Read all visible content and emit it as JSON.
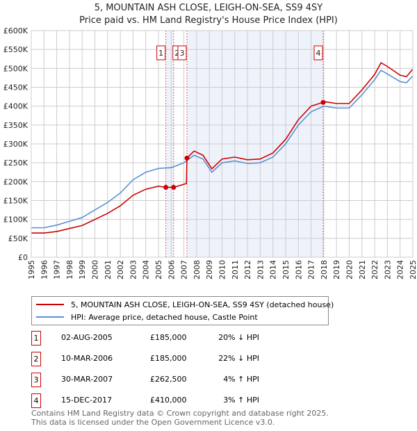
{
  "title": "5, MOUNTAIN ASH CLOSE, LEIGH-ON-SEA, SS9 4SY",
  "subtitle": "Price paid vs. HM Land Registry's House Price Index (HPI)",
  "legend": {
    "property": "5, MOUNTAIN ASH CLOSE, LEIGH-ON-SEA, SS9 4SY (detached house)",
    "hpi": "HPI: Average price, detached house, Castle Point"
  },
  "colors": {
    "property": "#cc0000",
    "hpi": "#5b8fd4",
    "shade": "#eef2fb"
  },
  "sales": [
    {
      "n": "1",
      "date": "02-AUG-2005",
      "price": "£185,000",
      "hpi": "20% ↓ HPI",
      "x": 2005.58,
      "y": 185000
    },
    {
      "n": "2",
      "date": "10-MAR-2006",
      "price": "£185,000",
      "hpi": "22% ↓ HPI",
      "x": 2006.19,
      "y": 185000
    },
    {
      "n": "3",
      "date": "30-MAR-2007",
      "price": "£262,500",
      "hpi": "4% ↑ HPI",
      "x": 2007.24,
      "y": 262500
    },
    {
      "n": "4",
      "date": "15-DEC-2017",
      "price": "£410,000",
      "hpi": "3% ↑ HPI",
      "x": 2017.95,
      "y": 410000
    }
  ],
  "footer": [
    "Contains HM Land Registry data © Crown copyright and database right 2025.",
    "This data is licensed under the Open Government Licence v3.0."
  ],
  "chart_data": {
    "type": "line",
    "xlim": [
      1995,
      2025
    ],
    "ylim": [
      0,
      600000
    ],
    "yticks": [
      {
        "v": 0,
        "l": "£0"
      },
      {
        "v": 50000,
        "l": "£50K"
      },
      {
        "v": 100000,
        "l": "£100K"
      },
      {
        "v": 150000,
        "l": "£150K"
      },
      {
        "v": 200000,
        "l": "£200K"
      },
      {
        "v": 250000,
        "l": "£250K"
      },
      {
        "v": 300000,
        "l": "£300K"
      },
      {
        "v": 350000,
        "l": "£350K"
      },
      {
        "v": 400000,
        "l": "£400K"
      },
      {
        "v": 450000,
        "l": "£450K"
      },
      {
        "v": 500000,
        "l": "£500K"
      },
      {
        "v": 550000,
        "l": "£550K"
      },
      {
        "v": 600000,
        "l": "£600K"
      }
    ],
    "xticks": [
      "1995",
      "1996",
      "1997",
      "1998",
      "1999",
      "2000",
      "2001",
      "2002",
      "2003",
      "2004",
      "2005",
      "2006",
      "2007",
      "2008",
      "2009",
      "2010",
      "2011",
      "2012",
      "2013",
      "2014",
      "2015",
      "2016",
      "2017",
      "2018",
      "2019",
      "2020",
      "2021",
      "2022",
      "2023",
      "2024",
      "2025"
    ],
    "series": [
      {
        "name": "HPI",
        "x": [
          1995,
          1996,
          1997,
          1998,
          1999,
          2000,
          2001,
          2002,
          2003,
          2004,
          2005,
          2006,
          2007,
          2007.8,
          2008.5,
          2009.2,
          2010,
          2011,
          2012,
          2013,
          2014,
          2015,
          2016,
          2017,
          2018,
          2019,
          2020,
          2021,
          2022,
          2022.5,
          2023,
          2024,
          2024.5,
          2025
        ],
        "y": [
          78000,
          78000,
          85000,
          95000,
          105000,
          125000,
          145000,
          170000,
          205000,
          225000,
          235000,
          237000,
          250000,
          270000,
          260000,
          225000,
          250000,
          255000,
          248000,
          250000,
          265000,
          300000,
          350000,
          385000,
          400000,
          395000,
          395000,
          430000,
          470000,
          495000,
          485000,
          465000,
          462000,
          480000
        ]
      },
      {
        "name": "Property",
        "x": [
          1995,
          1996,
          1997,
          1998,
          1999,
          2000,
          2001,
          2002,
          2003,
          2004,
          2005,
          2005.58,
          2006.19,
          2007.2,
          2007.24,
          2007.8,
          2008.5,
          2009.2,
          2010,
          2011,
          2012,
          2013,
          2014,
          2015,
          2016,
          2017,
          2017.95,
          2018,
          2019,
          2020,
          2021,
          2022,
          2022.5,
          2023,
          2024,
          2024.5,
          2025
        ],
        "y": [
          64000,
          64000,
          68000,
          76000,
          84000,
          100000,
          116000,
          136000,
          164000,
          180000,
          188000,
          185000,
          185000,
          195000,
          262500,
          281000,
          270000,
          234000,
          260000,
          265000,
          258000,
          260000,
          276000,
          312000,
          364000,
          400000,
          410000,
          412000,
          407000,
          407000,
          443000,
          484000,
          515000,
          505000,
          482000,
          478000,
          498000
        ]
      }
    ]
  }
}
